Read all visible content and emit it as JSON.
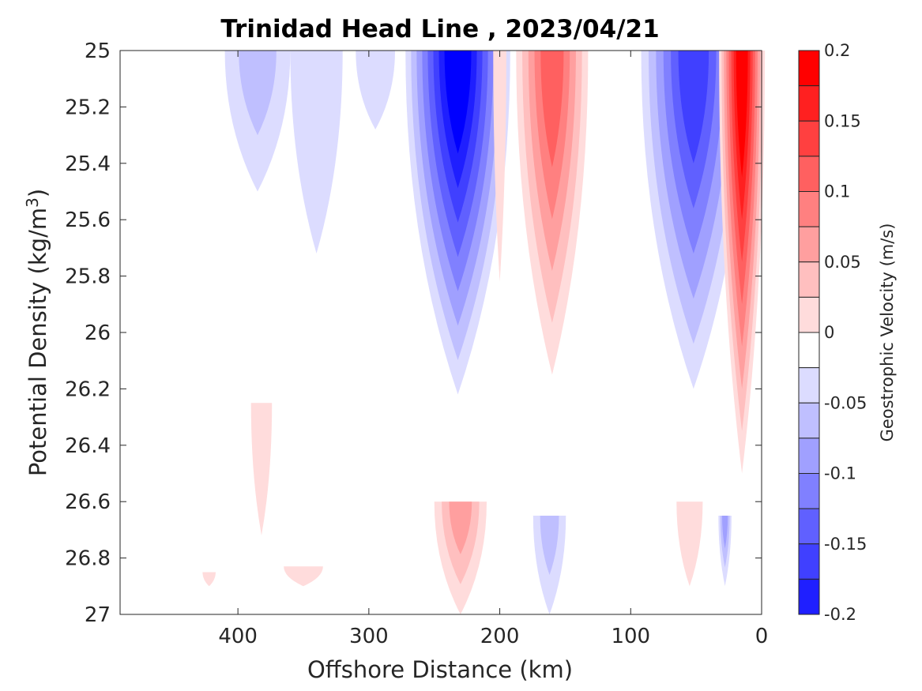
{
  "chart_data": {
    "type": "contour",
    "title": "Trinidad Head Line , 2023/04/21",
    "xlabel": "Offshore Distance (km)",
    "ylabel": "Potential Density (kg/m",
    "ylabel_superscript": "3",
    "ylabel_close": ")",
    "colorbar_label": "Geostrophic Velocity (m/s)",
    "x_reversed": true,
    "xlim": [
      0,
      490
    ],
    "ylim": [
      25,
      27
    ],
    "y_reversed": true,
    "x_ticks": [
      400,
      300,
      200,
      100,
      0
    ],
    "y_ticks": [
      "25",
      "25.2",
      "25.4",
      "25.6",
      "25.8",
      "26",
      "26.2",
      "26.4",
      "26.6",
      "26.8",
      "27"
    ],
    "colorbar_ticks": [
      "0.2",
      "0.15",
      "0.1",
      "0.05",
      "0",
      "-0.05",
      "-0.1",
      "-0.15",
      "-0.2"
    ],
    "levels": [
      -0.2,
      -0.175,
      -0.15,
      -0.125,
      -0.1,
      -0.075,
      -0.05,
      -0.025,
      0,
      0.025,
      0.05,
      0.075,
      0.1,
      0.125,
      0.15,
      0.175,
      0.2
    ],
    "level_colors": [
      "#0000ff",
      "#1f1fff",
      "#4040ff",
      "#6060ff",
      "#8080ff",
      "#a0a0ff",
      "#bfbfff",
      "#dcdcff",
      "#ffffff",
      "#ffffff",
      "#ffdcdc",
      "#ffbfbf",
      "#ff9f9f",
      "#ff8080",
      "#ff6060",
      "#ff4040",
      "#ff2020",
      "#ff0000"
    ],
    "features": [
      {
        "sign": "neg",
        "x": 385,
        "y_top": 25,
        "y_bottom": 25.5,
        "width": 50,
        "peak": -0.04
      },
      {
        "sign": "neg",
        "x": 340,
        "y_top": 25,
        "y_bottom": 25.72,
        "width": 40,
        "peak": -0.03
      },
      {
        "sign": "neg",
        "x": 295,
        "y_top": 25,
        "y_bottom": 25.28,
        "width": 30,
        "peak": -0.03
      },
      {
        "sign": "neg",
        "x": 232,
        "y_top": 25,
        "y_bottom": 26.22,
        "width": 80,
        "peak": -0.19
      },
      {
        "sign": "pos",
        "x": 200,
        "y_top": 25,
        "y_bottom": 25.82,
        "width": 10,
        "peak": 0.03
      },
      {
        "sign": "pos",
        "x": 160,
        "y_top": 25,
        "y_bottom": 26.15,
        "width": 55,
        "peak": 0.13
      },
      {
        "sign": "neg",
        "x": 52,
        "y_top": 25,
        "y_bottom": 26.2,
        "width": 80,
        "peak": -0.15
      },
      {
        "sign": "pos",
        "x": 15,
        "y_top": 25,
        "y_bottom": 26.5,
        "width": 35,
        "peak": 0.2
      },
      {
        "sign": "pos",
        "x": 382,
        "y_top": 26.25,
        "y_bottom": 26.72,
        "width": 16,
        "peak": 0.03
      },
      {
        "sign": "pos",
        "x": 230,
        "y_top": 26.6,
        "y_bottom": 27,
        "width": 40,
        "peak": 0.08
      },
      {
        "sign": "neg",
        "x": 162,
        "y_top": 26.65,
        "y_bottom": 27,
        "width": 25,
        "peak": -0.04
      },
      {
        "sign": "pos",
        "x": 55,
        "y_top": 26.6,
        "y_bottom": 26.9,
        "width": 20,
        "peak": 0.03
      },
      {
        "sign": "neg",
        "x": 28,
        "y_top": 26.65,
        "y_bottom": 26.9,
        "width": 10,
        "peak": -0.08
      },
      {
        "sign": "pos",
        "x": 350,
        "y_top": 26.83,
        "y_bottom": 26.9,
        "width": 30,
        "peak": 0.03
      },
      {
        "sign": "pos",
        "x": 422,
        "y_top": 26.85,
        "y_bottom": 26.9,
        "width": 10,
        "peak": 0.03
      }
    ]
  }
}
